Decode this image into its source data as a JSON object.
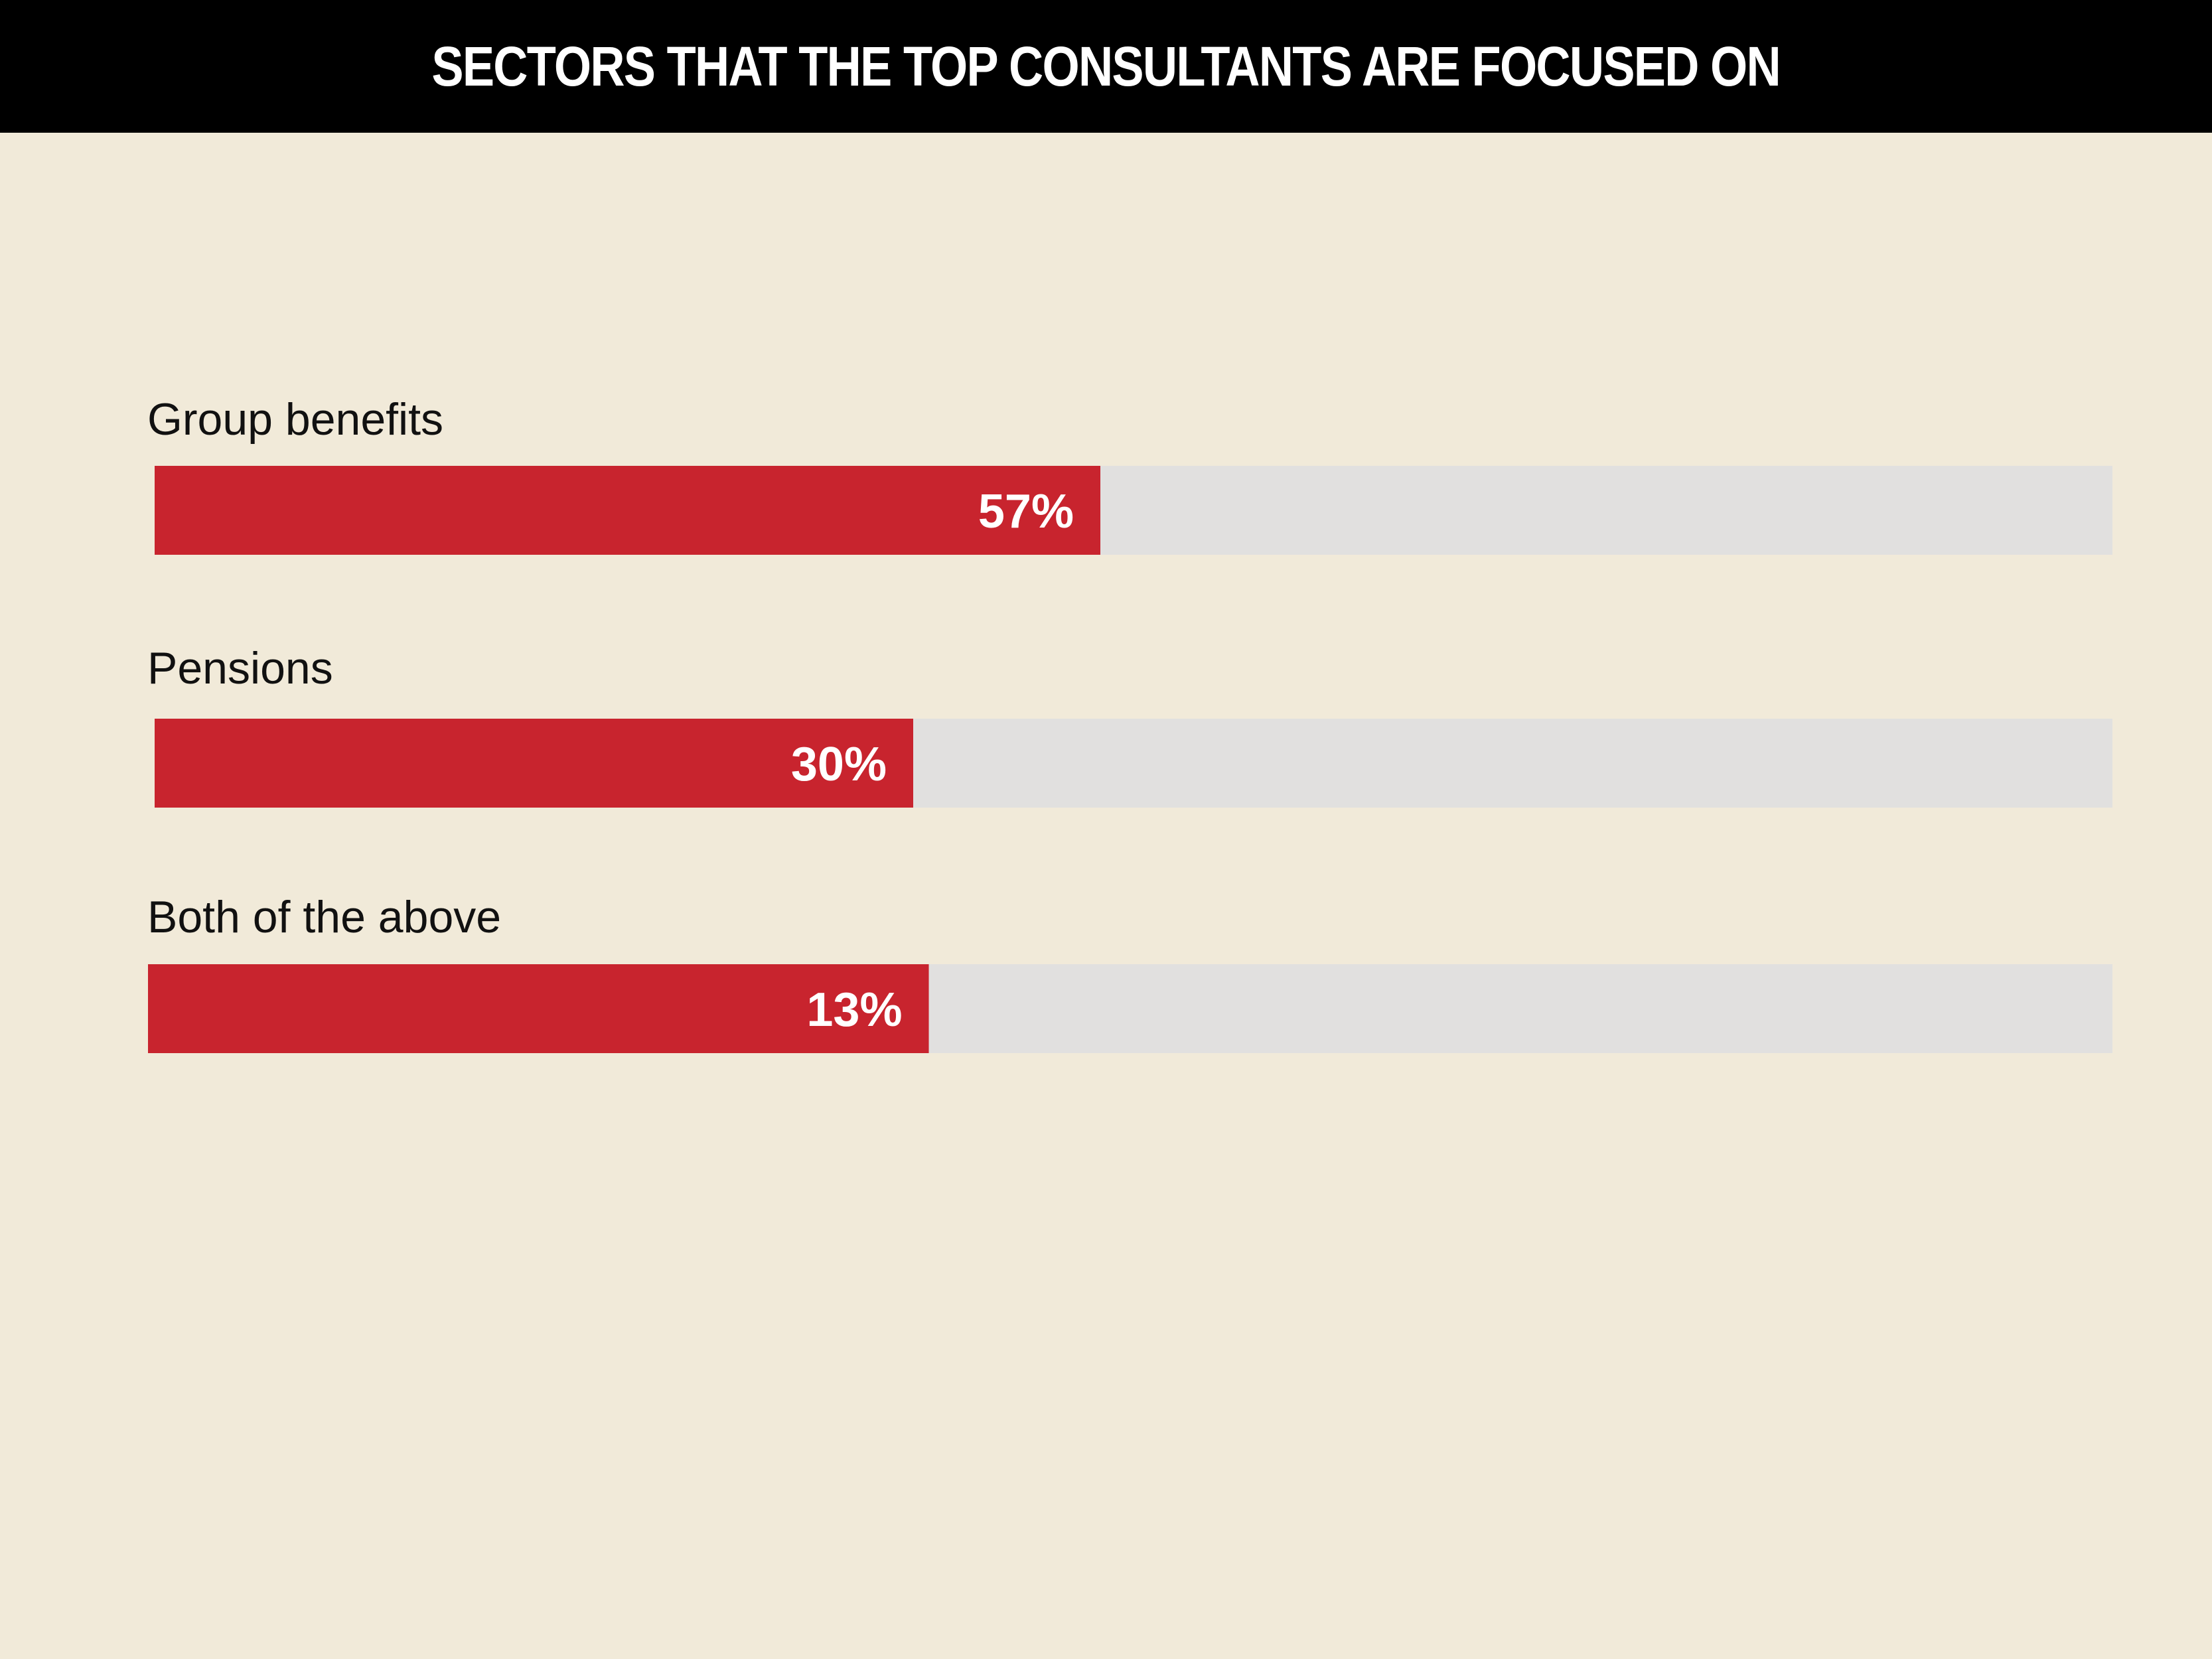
{
  "chart_data": {
    "type": "bar",
    "orientation": "horizontal",
    "title": "SECTORS THAT THE TOP CONSULTANTS ARE FOCUSED ON",
    "categories": [
      "Group benefits",
      "Pensions",
      "Both of the above"
    ],
    "values": [
      57,
      30,
      13
    ],
    "value_labels": [
      "57%",
      "30%",
      "13%"
    ],
    "xlim": [
      0,
      100
    ],
    "grid": false,
    "legend": "none",
    "colors": {
      "bar": "#c8242e",
      "track": "#e1e0df",
      "background": "#f1ead9",
      "header": "#000000"
    }
  }
}
